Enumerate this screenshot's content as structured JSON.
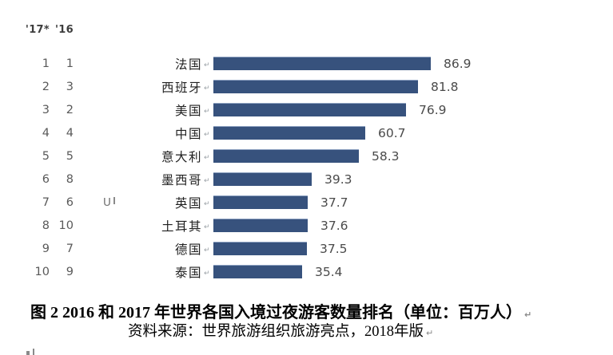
{
  "chart_data": {
    "type": "bar",
    "orientation": "horizontal",
    "title": "",
    "unit_label": "百万人",
    "bar_color": "#37527D",
    "value_color": "#4a4a4a",
    "xlim": [
      0,
      86.9
    ],
    "grid": false,
    "legend": false,
    "column_headers": [
      "'17*",
      "'16"
    ],
    "categories": [
      "法国",
      "西班牙",
      "美国",
      "中国",
      "意大利",
      "墨西哥",
      "英国",
      "土耳其",
      "德国",
      "泰国"
    ],
    "values": [
      86.9,
      81.8,
      76.9,
      60.7,
      58.3,
      39.3,
      37.7,
      37.6,
      37.5,
      35.4
    ],
    "rows": [
      {
        "rank_2017": "1",
        "rank_2016": "1",
        "country": "法国",
        "value": 86.9
      },
      {
        "rank_2017": "2",
        "rank_2016": "3",
        "country": "西班牙",
        "value": 81.8
      },
      {
        "rank_2017": "3",
        "rank_2016": "2",
        "country": "美国",
        "value": 76.9
      },
      {
        "rank_2017": "4",
        "rank_2016": "4",
        "country": "中国",
        "value": 60.7
      },
      {
        "rank_2017": "5",
        "rank_2016": "5",
        "country": "意大利",
        "value": 58.3
      },
      {
        "rank_2017": "6",
        "rank_2016": "8",
        "country": "墨西哥",
        "value": 39.3
      },
      {
        "rank_2017": "7",
        "rank_2016": "6",
        "country": "英国",
        "value": 37.7
      },
      {
        "rank_2017": "8",
        "rank_2016": "10",
        "country": "土耳其",
        "value": 37.6
      },
      {
        "rank_2017": "9",
        "rank_2016": "7",
        "country": "德国",
        "value": 37.5
      },
      {
        "rank_2017": "10",
        "rank_2016": "9",
        "country": "泰国",
        "value": 35.4
      }
    ]
  },
  "formatting_marks": {
    "paragraph_mark": "↵",
    "cropped_label_fragment": "U"
  },
  "caption": {
    "line1": "图 2  2016 和 2017 年世界各国入境过夜游客数量排名（单位：百万人）",
    "line2": "资料来源：世界旅游组织旅游亮点，2018年版"
  }
}
